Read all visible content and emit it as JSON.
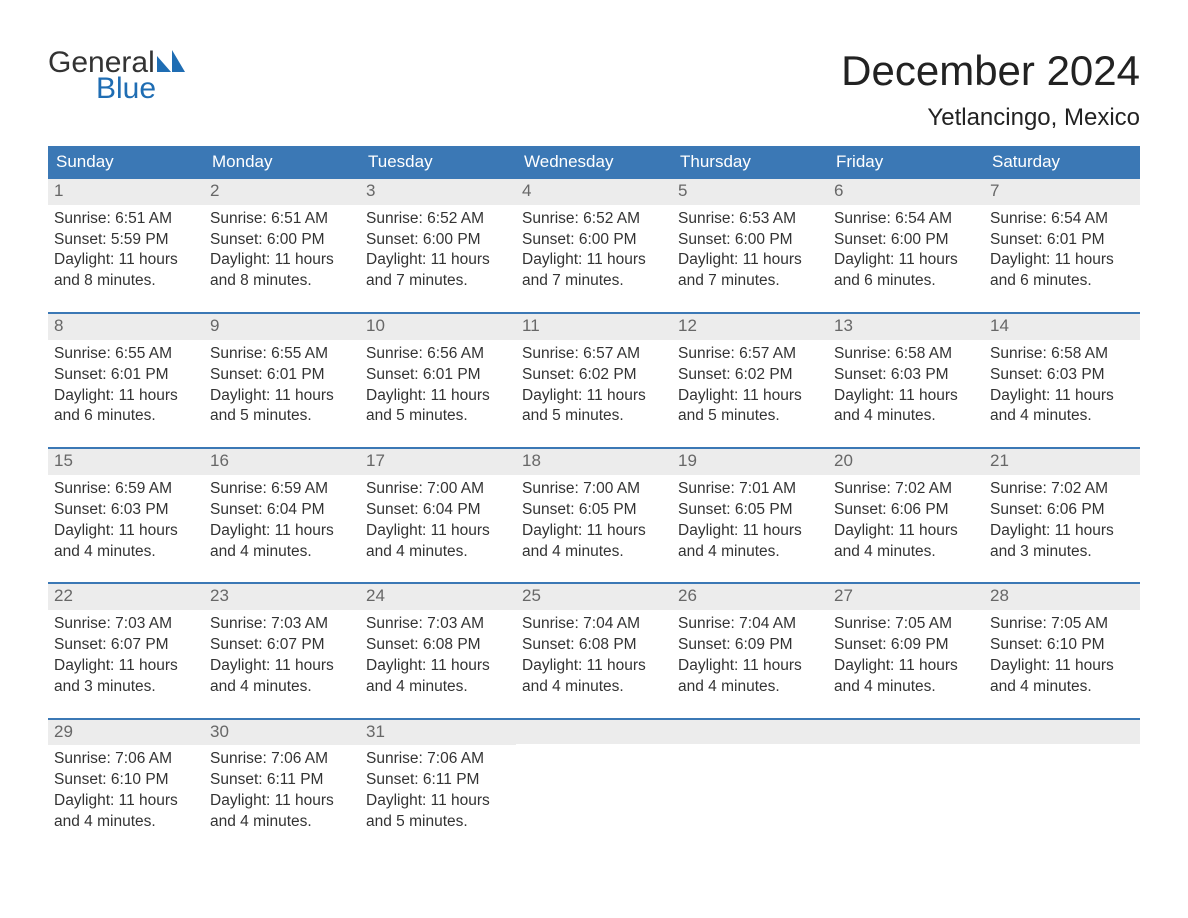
{
  "brand": {
    "line1": "General",
    "line2": "Blue",
    "sail_color": "#1f6db3",
    "text_color_line1": "#333333",
    "text_color_line2": "#1f6db3"
  },
  "title": "December 2024",
  "location": "Yetlancingo, Mexico",
  "colors": {
    "header_blue": "#3b78b5",
    "daynum_bg": "#ececec",
    "daynum_text": "#676767",
    "body_text": "#333333",
    "week_border": "#3b78b5",
    "page_bg": "#ffffff"
  },
  "weekdays": [
    "Sunday",
    "Monday",
    "Tuesday",
    "Wednesday",
    "Thursday",
    "Friday",
    "Saturday"
  ],
  "weeks": [
    [
      {
        "day": 1,
        "sunrise": "6:51 AM",
        "sunset": "5:59 PM",
        "daylight": "11 hours and 8 minutes."
      },
      {
        "day": 2,
        "sunrise": "6:51 AM",
        "sunset": "6:00 PM",
        "daylight": "11 hours and 8 minutes."
      },
      {
        "day": 3,
        "sunrise": "6:52 AM",
        "sunset": "6:00 PM",
        "daylight": "11 hours and 7 minutes."
      },
      {
        "day": 4,
        "sunrise": "6:52 AM",
        "sunset": "6:00 PM",
        "daylight": "11 hours and 7 minutes."
      },
      {
        "day": 5,
        "sunrise": "6:53 AM",
        "sunset": "6:00 PM",
        "daylight": "11 hours and 7 minutes."
      },
      {
        "day": 6,
        "sunrise": "6:54 AM",
        "sunset": "6:00 PM",
        "daylight": "11 hours and 6 minutes."
      },
      {
        "day": 7,
        "sunrise": "6:54 AM",
        "sunset": "6:01 PM",
        "daylight": "11 hours and 6 minutes."
      }
    ],
    [
      {
        "day": 8,
        "sunrise": "6:55 AM",
        "sunset": "6:01 PM",
        "daylight": "11 hours and 6 minutes."
      },
      {
        "day": 9,
        "sunrise": "6:55 AM",
        "sunset": "6:01 PM",
        "daylight": "11 hours and 5 minutes."
      },
      {
        "day": 10,
        "sunrise": "6:56 AM",
        "sunset": "6:01 PM",
        "daylight": "11 hours and 5 minutes."
      },
      {
        "day": 11,
        "sunrise": "6:57 AM",
        "sunset": "6:02 PM",
        "daylight": "11 hours and 5 minutes."
      },
      {
        "day": 12,
        "sunrise": "6:57 AM",
        "sunset": "6:02 PM",
        "daylight": "11 hours and 5 minutes."
      },
      {
        "day": 13,
        "sunrise": "6:58 AM",
        "sunset": "6:03 PM",
        "daylight": "11 hours and 4 minutes."
      },
      {
        "day": 14,
        "sunrise": "6:58 AM",
        "sunset": "6:03 PM",
        "daylight": "11 hours and 4 minutes."
      }
    ],
    [
      {
        "day": 15,
        "sunrise": "6:59 AM",
        "sunset": "6:03 PM",
        "daylight": "11 hours and 4 minutes."
      },
      {
        "day": 16,
        "sunrise": "6:59 AM",
        "sunset": "6:04 PM",
        "daylight": "11 hours and 4 minutes."
      },
      {
        "day": 17,
        "sunrise": "7:00 AM",
        "sunset": "6:04 PM",
        "daylight": "11 hours and 4 minutes."
      },
      {
        "day": 18,
        "sunrise": "7:00 AM",
        "sunset": "6:05 PM",
        "daylight": "11 hours and 4 minutes."
      },
      {
        "day": 19,
        "sunrise": "7:01 AM",
        "sunset": "6:05 PM",
        "daylight": "11 hours and 4 minutes."
      },
      {
        "day": 20,
        "sunrise": "7:02 AM",
        "sunset": "6:06 PM",
        "daylight": "11 hours and 4 minutes."
      },
      {
        "day": 21,
        "sunrise": "7:02 AM",
        "sunset": "6:06 PM",
        "daylight": "11 hours and 3 minutes."
      }
    ],
    [
      {
        "day": 22,
        "sunrise": "7:03 AM",
        "sunset": "6:07 PM",
        "daylight": "11 hours and 3 minutes."
      },
      {
        "day": 23,
        "sunrise": "7:03 AM",
        "sunset": "6:07 PM",
        "daylight": "11 hours and 4 minutes."
      },
      {
        "day": 24,
        "sunrise": "7:03 AM",
        "sunset": "6:08 PM",
        "daylight": "11 hours and 4 minutes."
      },
      {
        "day": 25,
        "sunrise": "7:04 AM",
        "sunset": "6:08 PM",
        "daylight": "11 hours and 4 minutes."
      },
      {
        "day": 26,
        "sunrise": "7:04 AM",
        "sunset": "6:09 PM",
        "daylight": "11 hours and 4 minutes."
      },
      {
        "day": 27,
        "sunrise": "7:05 AM",
        "sunset": "6:09 PM",
        "daylight": "11 hours and 4 minutes."
      },
      {
        "day": 28,
        "sunrise": "7:05 AM",
        "sunset": "6:10 PM",
        "daylight": "11 hours and 4 minutes."
      }
    ],
    [
      {
        "day": 29,
        "sunrise": "7:06 AM",
        "sunset": "6:10 PM",
        "daylight": "11 hours and 4 minutes."
      },
      {
        "day": 30,
        "sunrise": "7:06 AM",
        "sunset": "6:11 PM",
        "daylight": "11 hours and 4 minutes."
      },
      {
        "day": 31,
        "sunrise": "7:06 AM",
        "sunset": "6:11 PM",
        "daylight": "11 hours and 5 minutes."
      },
      null,
      null,
      null,
      null
    ]
  ],
  "labels": {
    "sunrise_prefix": "Sunrise: ",
    "sunset_prefix": "Sunset: ",
    "daylight_prefix": "Daylight: "
  }
}
